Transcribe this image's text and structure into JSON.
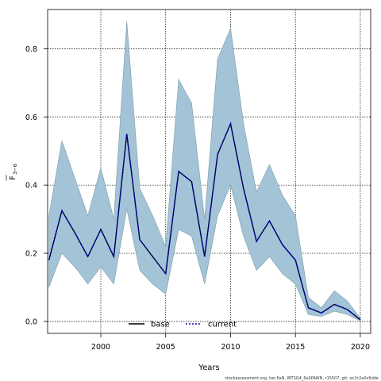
{
  "chart_data": {
    "type": "line",
    "xlabel": "Years",
    "ylabel_main": "F",
    "ylabel_sub": "3−6",
    "xlim": [
      1995.9,
      2020.8
    ],
    "ylim": [
      -0.035,
      0.915
    ],
    "xticks": [
      2000,
      2005,
      2010,
      2015,
      2020
    ],
    "yticks": [
      0.0,
      0.2,
      0.4,
      0.6,
      0.8
    ],
    "ytick_labels": [
      "0.0",
      "0.2",
      "0.4",
      "0.6",
      "0.8"
    ],
    "grid": true,
    "legend_placement": "bottom-center",
    "x": [
      1996,
      1997,
      1998,
      1999,
      2000,
      2001,
      2002,
      2003,
      2004,
      2005,
      2006,
      2007,
      2008,
      2009,
      2010,
      2011,
      2012,
      2013,
      2014,
      2015,
      2016,
      2017,
      2018,
      2019,
      2020
    ],
    "band": {
      "upper": [
        0.31,
        0.53,
        0.42,
        0.31,
        0.45,
        0.3,
        0.88,
        0.39,
        0.31,
        0.22,
        0.71,
        0.64,
        0.3,
        0.77,
        0.86,
        0.58,
        0.38,
        0.46,
        0.37,
        0.31,
        0.07,
        0.04,
        0.09,
        0.06,
        0.01
      ],
      "lower": [
        0.1,
        0.2,
        0.16,
        0.11,
        0.16,
        0.11,
        0.33,
        0.15,
        0.11,
        0.08,
        0.27,
        0.25,
        0.11,
        0.31,
        0.4,
        0.25,
        0.15,
        0.19,
        0.14,
        0.11,
        0.02,
        0.015,
        0.03,
        0.02,
        0.002
      ],
      "color": "#a3c4d6",
      "edge_color": "#7a9aa9"
    },
    "series": [
      {
        "name": "base",
        "style": "solid",
        "color": "#000000",
        "values": [
          0.18,
          0.325,
          0.26,
          0.19,
          0.27,
          0.19,
          0.55,
          0.24,
          0.19,
          0.14,
          0.44,
          0.41,
          0.19,
          0.49,
          0.58,
          0.39,
          0.235,
          0.295,
          0.225,
          0.18,
          0.04,
          0.025,
          0.05,
          0.035,
          0.005
        ]
      },
      {
        "name": "current",
        "style": "dotted",
        "color": "#0000cc",
        "values": [
          0.18,
          0.325,
          0.26,
          0.19,
          0.27,
          0.19,
          0.55,
          0.24,
          0.19,
          0.14,
          0.44,
          0.41,
          0.19,
          0.49,
          0.58,
          0.39,
          0.235,
          0.295,
          0.225,
          0.18,
          0.04,
          0.025,
          0.05,
          0.035,
          0.005
        ]
      }
    ]
  },
  "footer": "stockassessment.org, her.6aN, IBTSQ4_6aSPAWN, r15507, git: ec2c2a0c6dde"
}
